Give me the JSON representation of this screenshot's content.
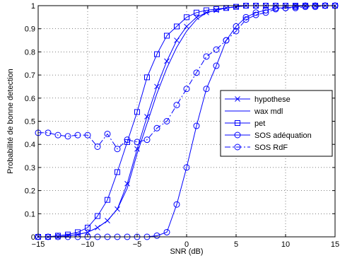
{
  "chart_data": {
    "type": "line",
    "xlabel": "SNR (dB)",
    "ylabel": "Probabilité de bonne detection",
    "xlim": [
      -15,
      15
    ],
    "ylim": [
      0,
      1
    ],
    "xticks": [
      -15,
      -10,
      -5,
      0,
      5,
      10,
      15
    ],
    "yticks": [
      0,
      0.1,
      0.2,
      0.3,
      0.4,
      0.5,
      0.6,
      0.7,
      0.8,
      0.9,
      1
    ],
    "xtick_labels": [
      "−15",
      "−10",
      "−5",
      "0",
      "5",
      "10",
      "15"
    ],
    "ytick_labels": [
      "0",
      "0.1",
      "0.2",
      "0.3",
      "0.4",
      "0.5",
      "0.6",
      "0.7",
      "0.8",
      "0.9",
      "1"
    ],
    "grid": "dotted",
    "legend_position": "center-right",
    "line_color": "#0000ff",
    "series": [
      {
        "name": "hypothese",
        "marker": "x",
        "dash": "solid",
        "x": [
          -15,
          -14,
          -13,
          -12,
          -11,
          -10,
          -9,
          -8,
          -7,
          -6,
          -5,
          -4,
          -3,
          -2,
          -1,
          0,
          1,
          2,
          3,
          4,
          5,
          6,
          7,
          8,
          9,
          10,
          11,
          12,
          13,
          14,
          15
        ],
        "y": [
          0.0,
          0.0,
          0.0,
          0.005,
          0.01,
          0.02,
          0.04,
          0.07,
          0.12,
          0.23,
          0.38,
          0.52,
          0.65,
          0.76,
          0.85,
          0.91,
          0.95,
          0.97,
          0.98,
          0.99,
          0.995,
          1.0,
          1.0,
          1.0,
          1.0,
          1.0,
          1.0,
          1.0,
          1.0,
          1.0,
          1.0
        ]
      },
      {
        "name": "wax mdl",
        "marker": "none",
        "dash": "solid",
        "x": [
          -15,
          -14,
          -13,
          -12,
          -11,
          -10,
          -9,
          -8,
          -7,
          -6,
          -5,
          -4,
          -3,
          -2,
          -1,
          0,
          1,
          2,
          3,
          4,
          5,
          6,
          7,
          8,
          9,
          10,
          11,
          12,
          13,
          14,
          15
        ],
        "y": [
          0.0,
          0.0,
          0.0,
          0.005,
          0.01,
          0.02,
          0.04,
          0.07,
          0.12,
          0.21,
          0.36,
          0.49,
          0.62,
          0.73,
          0.82,
          0.89,
          0.94,
          0.97,
          0.98,
          0.99,
          0.995,
          1.0,
          1.0,
          1.0,
          1.0,
          1.0,
          1.0,
          1.0,
          1.0,
          1.0,
          1.0
        ]
      },
      {
        "name": "pet",
        "marker": "square",
        "dash": "solid",
        "x": [
          -15,
          -14,
          -13,
          -12,
          -11,
          -10,
          -9,
          -8,
          -7,
          -6,
          -5,
          -4,
          -3,
          -2,
          -1,
          0,
          1,
          2,
          3,
          4,
          5,
          6,
          7,
          8,
          9,
          10,
          11,
          12,
          13,
          14,
          15
        ],
        "y": [
          0.0,
          0.0,
          0.005,
          0.01,
          0.02,
          0.04,
          0.09,
          0.16,
          0.28,
          0.41,
          0.54,
          0.69,
          0.79,
          0.87,
          0.91,
          0.95,
          0.97,
          0.98,
          0.985,
          0.99,
          0.995,
          1.0,
          1.0,
          1.0,
          1.0,
          1.0,
          1.0,
          1.0,
          1.0,
          1.0,
          1.0
        ]
      },
      {
        "name": "SOS adéquation",
        "marker": "circle",
        "dash": "solid",
        "x": [
          -15,
          -14,
          -13,
          -12,
          -11,
          -10,
          -9,
          -8,
          -7,
          -6,
          -5,
          -4,
          -3,
          -2,
          -1,
          0,
          1,
          2,
          3,
          4,
          5,
          6,
          7,
          8,
          9,
          10,
          11,
          12,
          13,
          14,
          15
        ],
        "y": [
          0.0,
          0.0,
          0.0,
          0.0,
          0.0,
          0.0,
          0.0,
          0.0,
          0.0,
          0.0,
          0.0,
          0.0,
          0.005,
          0.02,
          0.14,
          0.3,
          0.48,
          0.64,
          0.74,
          0.85,
          0.91,
          0.95,
          0.97,
          0.98,
          0.99,
          0.99,
          0.995,
          1.0,
          1.0,
          1.0,
          1.0
        ]
      },
      {
        "name": "SOS RdF",
        "marker": "circle",
        "dash": "dashdot",
        "x": [
          -15,
          -14,
          -13,
          -12,
          -11,
          -10,
          -9,
          -8,
          -7,
          -6,
          -5,
          -4,
          -3,
          -2,
          -1,
          0,
          1,
          2,
          3,
          4,
          5,
          6,
          7,
          8,
          9,
          10,
          11,
          12,
          13,
          14,
          15
        ],
        "y": [
          0.45,
          0.45,
          0.44,
          0.435,
          0.44,
          0.44,
          0.39,
          0.445,
          0.38,
          0.42,
          0.41,
          0.42,
          0.47,
          0.5,
          0.57,
          0.64,
          0.71,
          0.78,
          0.81,
          0.85,
          0.89,
          0.94,
          0.96,
          0.97,
          0.985,
          0.99,
          0.99,
          0.995,
          0.995,
          1.0,
          1.0
        ]
      }
    ]
  }
}
